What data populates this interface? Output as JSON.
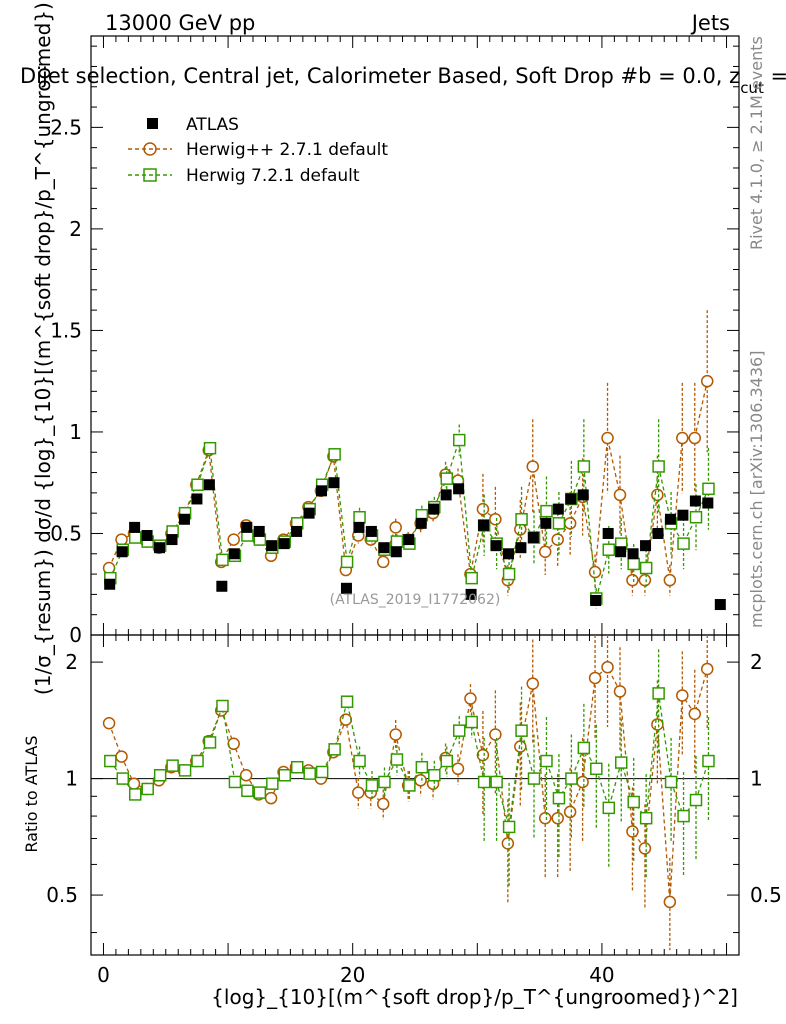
{
  "header": {
    "energy": "13000 GeV pp",
    "process": "Jets",
    "title": "Dijet selection, Central jet, Calorimeter Based, Soft Drop #b = 0.0, z",
    "title_sub": "cut",
    "title_tail": " ="
  },
  "side_labels": {
    "rivet": "Rivet 4.1.0, ≥ 2.1M events",
    "mcplots": "mcplots.cern.ch [arXiv:1306.3436]"
  },
  "watermark": "(ATLAS_2019_I1772062)",
  "axes": {
    "ylabel_main": "(1/σ_{resum}) dσ/d {log}_{10}[(m^{soft drop}/p_T^{ungroomed})^2]",
    "ylabel_ratio": "Ratio to ATLAS",
    "xlabel": "{log}_{10}[(m^{soft drop}/p_T^{ungroomed})^2]",
    "main_yticks": [
      "0",
      "0.5",
      "1",
      "1.5",
      "2",
      "2.5"
    ],
    "ratio_yticks": [
      "0.5",
      "1",
      "2"
    ],
    "xticks": [
      "0",
      "20",
      "40"
    ]
  },
  "colors": {
    "atlas": "#000000",
    "herwigpp": "#b35900",
    "herwig7": "#339900"
  },
  "chart_data": {
    "type": "scatter",
    "x": [
      0.5,
      1.5,
      2.5,
      3.5,
      4.5,
      5.5,
      6.5,
      7.5,
      8.5,
      9.5,
      10.5,
      11.5,
      12.5,
      13.5,
      14.5,
      15.5,
      16.5,
      17.5,
      18.5,
      19.5,
      20.5,
      21.5,
      22.5,
      23.5,
      24.5,
      25.5,
      26.5,
      27.5,
      28.5,
      29.5,
      30.5,
      31.5,
      32.5,
      33.5,
      34.5,
      35.5,
      36.5,
      37.5,
      38.5,
      39.5,
      40.5,
      41.5,
      42.5,
      43.5,
      44.5,
      45.5,
      46.5,
      47.5,
      48.5,
      49.5
    ],
    "xlim": [
      -1,
      51
    ],
    "ylim_main": [
      0,
      2.95
    ],
    "ylim_ratio": [
      0.35,
      2.35
    ],
    "legend_position": "top-left",
    "series": [
      {
        "name": "ATLAS",
        "marker": "filled-square",
        "values": [
          0.25,
          0.41,
          0.53,
          0.49,
          0.43,
          0.47,
          0.57,
          0.67,
          0.74,
          0.24,
          0.4,
          0.53,
          0.51,
          0.44,
          0.45,
          0.51,
          0.6,
          0.71,
          0.75,
          0.23,
          0.53,
          0.51,
          0.43,
          0.41,
          0.47,
          0.55,
          0.62,
          0.69,
          0.72,
          0.2,
          0.54,
          0.44,
          0.4,
          0.43,
          0.48,
          0.55,
          0.62,
          0.67,
          0.69,
          0.17,
          0.5,
          0.41,
          0.4,
          0.44,
          0.5,
          0.57,
          0.59,
          0.66,
          0.65,
          0.15
        ]
      },
      {
        "name": "Herwig++ 2.7.1 default",
        "marker": "open-circle",
        "values": [
          0.33,
          0.47,
          0.5,
          0.46,
          0.43,
          0.5,
          0.59,
          0.74,
          0.91,
          0.36,
          0.47,
          0.54,
          0.47,
          0.39,
          0.47,
          0.55,
          0.63,
          0.71,
          0.88,
          0.32,
          0.49,
          0.47,
          0.36,
          0.53,
          0.47,
          0.55,
          0.6,
          0.79,
          0.76,
          0.3,
          0.62,
          0.57,
          0.27,
          0.52,
          0.83,
          0.41,
          0.47,
          0.55,
          0.68,
          0.31,
          0.97,
          0.69,
          0.27,
          0.27,
          0.69,
          0.27,
          0.97,
          0.97,
          1.25
        ],
        "ratio": [
          1.39,
          1.14,
          0.97,
          0.94,
          0.99,
          1.07,
          1.05,
          1.11,
          1.25,
          1.5,
          1.23,
          1.02,
          0.91,
          0.89,
          1.04,
          1.07,
          1.05,
          1.0,
          1.17,
          1.42,
          0.92,
          0.92,
          0.86,
          1.3,
          0.96,
          0.99,
          0.97,
          1.13,
          1.06,
          1.61,
          1.15,
          1.3,
          0.68,
          1.21,
          1.76,
          0.79,
          0.79,
          0.82,
          0.98,
          1.82,
          1.94,
          1.68,
          0.73,
          0.66,
          1.38,
          0.48,
          1.64,
          1.47,
          1.92
        ]
      },
      {
        "name": "Herwig 7.2.1 default",
        "marker": "open-square",
        "values": [
          0.28,
          0.42,
          0.48,
          0.46,
          0.44,
          0.51,
          0.6,
          0.74,
          0.92,
          0.37,
          0.39,
          0.49,
          0.47,
          0.43,
          0.46,
          0.55,
          0.62,
          0.74,
          0.89,
          0.36,
          0.58,
          0.49,
          0.42,
          0.46,
          0.45,
          0.59,
          0.63,
          0.77,
          0.96,
          0.28,
          0.54,
          0.45,
          0.3,
          0.57,
          0.48,
          0.61,
          0.55,
          0.67,
          0.83,
          0.18,
          0.42,
          0.45,
          0.35,
          0.33,
          0.83,
          0.55,
          0.45,
          0.58,
          0.72
        ],
        "ratio": [
          1.11,
          1.0,
          0.91,
          0.94,
          1.02,
          1.08,
          1.05,
          1.11,
          1.24,
          1.54,
          0.98,
          0.93,
          0.92,
          0.97,
          1.02,
          1.07,
          1.03,
          1.04,
          1.19,
          1.58,
          1.11,
          0.96,
          0.98,
          1.12,
          0.96,
          1.07,
          1.02,
          1.11,
          1.33,
          1.4,
          0.98,
          0.98,
          0.75,
          1.33,
          1.0,
          1.11,
          0.89,
          1.0,
          1.2,
          1.06,
          0.84,
          1.1,
          0.87,
          0.79,
          1.66,
          0.98,
          0.8,
          0.88,
          1.11
        ]
      }
    ]
  }
}
